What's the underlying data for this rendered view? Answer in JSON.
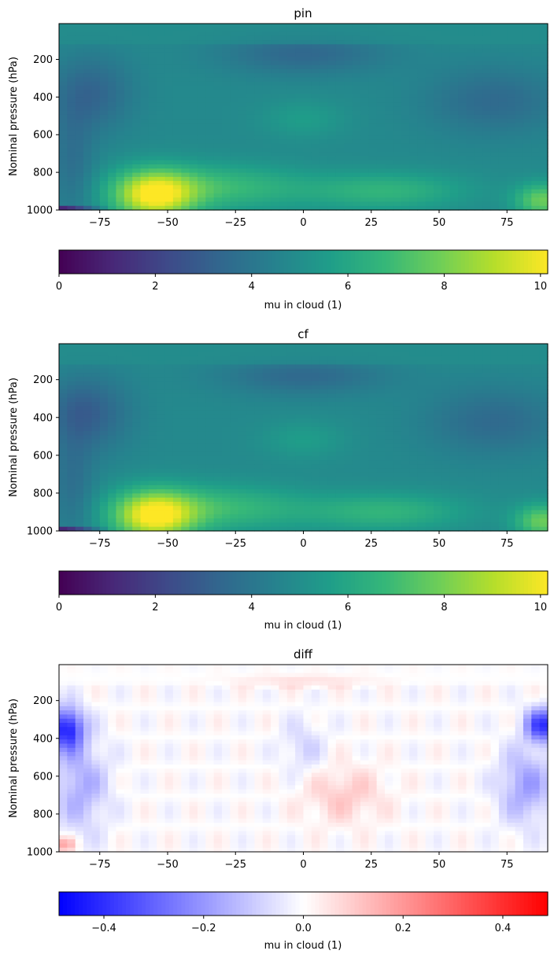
{
  "chart_data": [
    {
      "type": "heatmap",
      "title": "pin",
      "ylabel": "Nominal pressure (hPa)",
      "xlabel": "",
      "xlim": [
        -90,
        90
      ],
      "ylim": [
        1000,
        10
      ],
      "x_ticks": [
        -75,
        -50,
        -25,
        0,
        25,
        50,
        75
      ],
      "y_ticks": [
        200,
        400,
        600,
        800,
        1000
      ],
      "colormap": "viridis",
      "colorbar": {
        "label": "mu in cloud (1)",
        "range": [
          0,
          10.15
        ],
        "ticks": [
          0,
          2,
          4,
          6,
          8,
          10
        ]
      },
      "features": [
        {
          "lat": -55,
          "p": 920,
          "value": 10.0
        },
        {
          "lat": 0,
          "p": 180,
          "value": 3.5
        },
        {
          "lat": -80,
          "p": 380,
          "value": 3.5
        },
        {
          "lat": 85,
          "p": 950,
          "value": 8.5
        }
      ]
    },
    {
      "type": "heatmap",
      "title": "cf",
      "ylabel": "Nominal pressure (hPa)",
      "xlabel": "",
      "xlim": [
        -90,
        90
      ],
      "ylim": [
        1000,
        10
      ],
      "x_ticks": [
        -75,
        -50,
        -25,
        0,
        25,
        50,
        75
      ],
      "y_ticks": [
        200,
        400,
        600,
        800,
        1000
      ],
      "colormap": "viridis",
      "colorbar": {
        "label": "mu in cloud (1)",
        "range": [
          0,
          10.15
        ],
        "ticks": [
          0,
          2,
          4,
          6,
          8,
          10
        ]
      },
      "features": [
        {
          "lat": -55,
          "p": 900,
          "value": 10.0
        },
        {
          "lat": 0,
          "p": 160,
          "value": 3.4
        },
        {
          "lat": -75,
          "p": 350,
          "value": 3.3
        },
        {
          "lat": 85,
          "p": 950,
          "value": 8.0
        }
      ]
    },
    {
      "type": "heatmap",
      "title": "diff",
      "ylabel": "Nominal pressure (hPa)",
      "xlabel": "",
      "xlim": [
        -90,
        90
      ],
      "ylim": [
        1000,
        10
      ],
      "x_ticks": [
        -75,
        -50,
        -25,
        0,
        25,
        50,
        75
      ],
      "y_ticks": [
        200,
        400,
        600,
        800,
        1000
      ],
      "colormap": "bwr",
      "colorbar": {
        "label": "mu in cloud (1)",
        "range": [
          -0.49,
          0.49
        ],
        "ticks": [
          -0.4,
          -0.2,
          0.0,
          0.2,
          0.4
        ]
      },
      "features": [
        {
          "lat": -87,
          "p": 350,
          "value": -0.4
        },
        {
          "lat": 88,
          "p": 330,
          "value": -0.35
        },
        {
          "lat": 0,
          "p": 100,
          "value": 0.15
        },
        {
          "lat": -88,
          "p": 960,
          "value": 0.2
        }
      ]
    }
  ]
}
